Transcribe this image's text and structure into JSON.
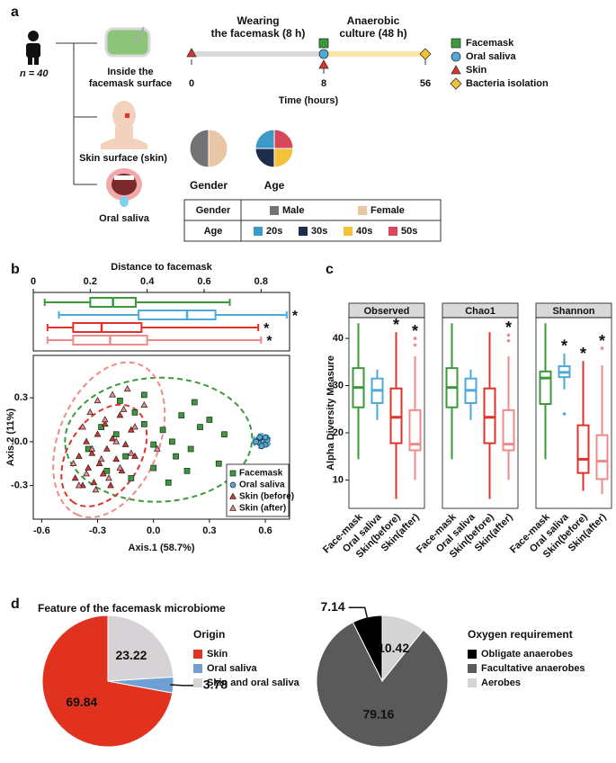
{
  "panels": [
    "a",
    "b",
    "c",
    "d"
  ],
  "diagram": {
    "n": "n = 40",
    "samples": [
      [
        "Inside the",
        "facemask surface"
      ],
      [
        "Skin surface (skin)"
      ],
      [
        "Oral saliva"
      ]
    ],
    "timeline": {
      "phases": [
        [
          "Wearing",
          "the facemask (8 h)"
        ],
        [
          "Anaerobic",
          "culture (48 h)"
        ]
      ],
      "ticks": [
        "0",
        "8",
        "56"
      ],
      "xlabel": "Time (hours)",
      "legend": [
        "Facemask",
        "Oral saliva",
        "Skin",
        "Bacteria isolation"
      ]
    },
    "title_d": "Feature of the facemask microbiome"
  },
  "chart_data": [
    {
      "type": "pie",
      "title": "Gender",
      "categories": [
        "Male",
        "Female"
      ],
      "values": [
        50,
        50
      ],
      "colors": [
        "#737373",
        "#e8c6a6"
      ]
    },
    {
      "type": "pie",
      "title": "Age",
      "categories": [
        "20s",
        "30s",
        "40s",
        "50s"
      ],
      "values": [
        25,
        25,
        25,
        25
      ],
      "colors": [
        "#3b9bc6",
        "#1f2c4c",
        "#f3c13a",
        "#d9485a"
      ]
    },
    {
      "type": "boxplot",
      "horizontal": true,
      "title": "Distance to facemask",
      "xlim": [
        0,
        0.9
      ],
      "xticks": [
        0,
        0.2,
        0.4,
        0.6,
        0.8
      ],
      "boxes": [
        {
          "color": "#3a9a3a",
          "min": 0.04,
          "q1": 0.2,
          "median": 0.28,
          "q3": 0.36,
          "max": 0.69
        },
        {
          "color": "#4eaad9",
          "min": 0.09,
          "q1": 0.37,
          "median": 0.54,
          "q3": 0.64,
          "max": 0.89,
          "mark": "*"
        },
        {
          "color": "#e0322a",
          "min": 0.05,
          "q1": 0.14,
          "median": 0.24,
          "q3": 0.38,
          "max": 0.79,
          "mark": "*"
        },
        {
          "color": "#f08a8a",
          "min": 0.05,
          "q1": 0.14,
          "median": 0.27,
          "q3": 0.4,
          "max": 0.8,
          "mark": "*"
        }
      ]
    },
    {
      "type": "scatter",
      "xlabel": "Axis.1 (58.7%)",
      "ylabel": "Axis.2 (11%)",
      "legend": "lower right",
      "xlim": [
        -0.645,
        0.73
      ],
      "ylim": [
        -0.53,
        0.59
      ],
      "xticks": [
        -0.6,
        -0.3,
        {
          "value": 0,
          "label": "0.0"
        },
        0.3,
        0.6
      ],
      "yticks": [
        -0.3,
        {
          "value": 0,
          "label": "0.0"
        },
        0.3
      ],
      "series": [
        {
          "name": "Facemask",
          "color": "#3a9a3a",
          "marker": "square",
          "x": [
            -0.35,
            -0.28,
            -0.2,
            -0.15,
            -0.1,
            -0.05,
            0.0,
            0.05,
            0.1,
            0.15,
            0.2,
            0.25,
            0.3,
            0.35,
            0.38,
            -0.12,
            0.0,
            0.08,
            0.18,
            -0.25,
            -0.05,
            0.22,
            0.12,
            -0.18
          ],
          "y": [
            -0.05,
            0.1,
            0.05,
            -0.1,
            0.2,
            0.12,
            -0.02,
            0.08,
            0.0,
            0.18,
            -0.05,
            0.1,
            0.15,
            -0.15,
            0.05,
            -0.25,
            -0.18,
            -0.28,
            -0.2,
            -0.2,
            0.32,
            0.27,
            -0.1,
            0.28
          ]
        },
        {
          "name": "Oral saliva",
          "color": "#4eaad9",
          "marker": "circle",
          "x": [
            0.56,
            0.57,
            0.58,
            0.59,
            0.6,
            0.57,
            0.61,
            0.58,
            0.55,
            0.6
          ],
          "y": [
            0.01,
            -0.01,
            0.02,
            0.0,
            -0.02,
            0.03,
            0.01,
            -0.03,
            0.0,
            0.03
          ]
        },
        {
          "name": "Skin (before)",
          "color": "#e0322a",
          "marker": "triangle",
          "x": [
            -0.42,
            -0.4,
            -0.38,
            -0.36,
            -0.35,
            -0.33,
            -0.32,
            -0.3,
            -0.29,
            -0.27,
            -0.26,
            -0.25,
            -0.23,
            -0.22,
            -0.2,
            -0.18,
            -0.17,
            -0.15,
            -0.12,
            -0.1
          ],
          "y": [
            -0.25,
            -0.1,
            -0.3,
            0.0,
            -0.18,
            -0.08,
            -0.28,
            0.05,
            -0.15,
            -0.22,
            0.12,
            -0.05,
            -0.3,
            0.02,
            -0.12,
            0.18,
            -0.2,
            -0.02,
            0.08,
            -0.1
          ]
        },
        {
          "name": "Skin (after)",
          "color": "#f08a8a",
          "marker": "triangle",
          "x": [
            -0.43,
            -0.4,
            -0.38,
            -0.36,
            -0.34,
            -0.33,
            -0.31,
            -0.3,
            -0.28,
            -0.26,
            -0.24,
            -0.22,
            -0.2,
            -0.18,
            -0.16,
            -0.14,
            -0.12,
            -0.1,
            -0.05,
            0.02
          ],
          "y": [
            -0.15,
            -0.3,
            0.1,
            -0.22,
            0.2,
            -0.05,
            -0.33,
            0.28,
            -0.12,
            0.15,
            -0.25,
            0.32,
            0.0,
            -0.18,
            0.22,
            0.36,
            -0.08,
            0.1,
            0.25,
            -0.05
          ]
        }
      ]
    },
    {
      "type": "boxplot",
      "ylabel": "Alpha Diversity Measure",
      "categories": [
        "Face-mask",
        "Oral saliva",
        "Skin(before)",
        "Skin(after)"
      ],
      "colors": [
        "#3a9a3a",
        "#4eaad9",
        "#e0322a",
        "#f08a8a"
      ],
      "ylim": [
        4,
        44.4
      ],
      "yticks": [
        10,
        20,
        30,
        40
      ],
      "facets": [
        {
          "title": "Observed",
          "boxes": [
            {
              "min": 14.4,
              "q1": 25.4,
              "median": 29.6,
              "q3": 33.7,
              "max": 43.2
            },
            {
              "min": 22.7,
              "q1": 26.3,
              "median": 29.0,
              "q3": 31.5,
              "max": 33.4
            },
            {
              "min": 6,
              "q1": 17.8,
              "median": 23.3,
              "q3": 29.4,
              "max": 41.3,
              "mark": "*"
            },
            {
              "min": 10,
              "q1": 16.3,
              "median": 17.6,
              "q3": 24.8,
              "max": 36.2,
              "outliers": [
                38.6,
                40
              ],
              "mark": "*"
            }
          ]
        },
        {
          "title": "Chao1",
          "boxes": [
            {
              "min": 14.4,
              "q1": 25.4,
              "median": 29.6,
              "q3": 33.7,
              "max": 43.2
            },
            {
              "min": 22.7,
              "q1": 26.3,
              "median": 29.0,
              "q3": 31.5,
              "max": 33.4
            },
            {
              "min": 6,
              "q1": 17.8,
              "median": 23.3,
              "q3": 29.4,
              "max": 41.3
            },
            {
              "min": 10,
              "q1": 16.3,
              "median": 17.6,
              "q3": 24.8,
              "max": 36.2,
              "outliers": [
                39.5,
                40.7
              ],
              "mark": "*"
            }
          ]
        },
        {
          "title": "Shannon",
          "boxes": [
            {
              "min": 14.4,
              "q1": 26.1,
              "median": 31.6,
              "q3": 33,
              "max": 43.2
            },
            {
              "min": 29.2,
              "q1": 31.8,
              "median": 32.8,
              "q3": 34.1,
              "max": 36.8,
              "outliers": [
                24
              ],
              "mark": "*"
            },
            {
              "min": 7.7,
              "q1": 11.5,
              "median": 14.4,
              "q3": 21.6,
              "max": 35.2,
              "mark": "*"
            },
            {
              "min": 7,
              "q1": 10.2,
              "median": 14,
              "q3": 19.5,
              "max": 34.3,
              "outliers": [
                37.9
              ],
              "mark": "*"
            }
          ]
        }
      ]
    },
    {
      "type": "pie",
      "title": "Origin",
      "data_labels": true,
      "legend": "right",
      "categories": [
        "Skin",
        "Oral saliva",
        "Skin and oral saliva"
      ],
      "values": [
        69.84,
        3.78,
        23.22
      ],
      "colors": [
        "#e0321f",
        "#6ea0d6",
        "#d6d2d6"
      ]
    },
    {
      "type": "pie",
      "title": "Oxygen requirement",
      "data_labels": true,
      "legend": "right",
      "categories": [
        "Obligate anaerobes",
        "Facultative anaerobes",
        "Aerobes"
      ],
      "values": [
        7.14,
        79.16,
        10.42
      ],
      "colors": [
        "#000000",
        "#5a5a5a",
        "#d4d4d4"
      ]
    }
  ]
}
